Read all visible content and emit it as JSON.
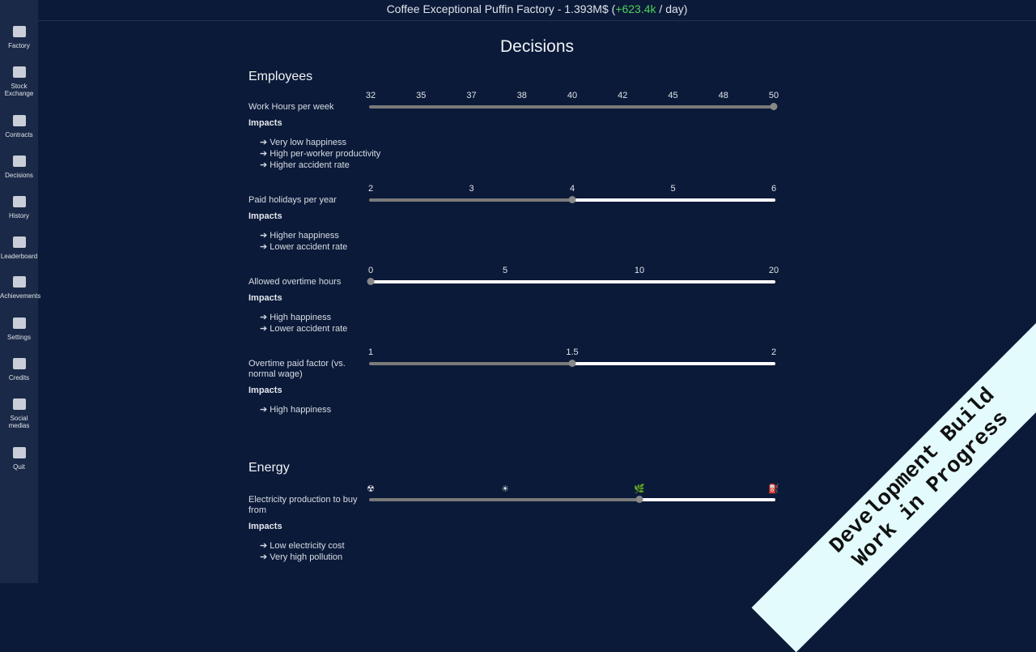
{
  "header": {
    "company": "Coffee Exceptional Puffin Factory - 1.393M$ (",
    "income": "+623.4k",
    "income_suffix": " / day)"
  },
  "sidebar": [
    "Factory",
    "Stock Exchange",
    "Contracts",
    "Decisions",
    "History",
    "Leaderboard",
    "Achievements",
    "Settings",
    "Credits",
    "Social medias",
    "Quit"
  ],
  "title": "Decisions",
  "sections": [
    {
      "heading": "Employees",
      "decisions": [
        {
          "label": "Work Hours per week",
          "impacts_title": "Impacts",
          "impacts": [
            "➔ Very low happiness",
            "➔ High per-worker productivity",
            "➔ Higher accident rate"
          ],
          "ticks": [
            32,
            35,
            37,
            38,
            40,
            42,
            45,
            48,
            50
          ],
          "value": 50
        },
        {
          "label": "Paid holidays per year",
          "impacts_title": "Impacts",
          "impacts": [
            "➔ Higher happiness",
            "➔ Lower accident rate"
          ],
          "ticks": [
            2,
            3,
            4,
            5,
            6
          ],
          "value": 4
        },
        {
          "label": "Allowed overtime hours",
          "impacts_title": "Impacts",
          "impacts": [
            "➔ High happiness",
            "➔ Lower accident rate"
          ],
          "ticks": [
            0,
            5,
            10,
            20
          ],
          "value": 0
        },
        {
          "label": "Overtime paid factor (vs. normal wage)",
          "impacts_title": "Impacts",
          "impacts": [
            "➔ High happiness"
          ],
          "ticks": [
            1,
            1.5,
            2
          ],
          "value": 1.5
        }
      ]
    },
    {
      "heading": "Energy",
      "decisions": [
        {
          "label": "Electricity production to buy from",
          "impacts_title": "Impacts",
          "impacts": [
            "➔ Low electricity cost",
            "➔ Very high pollution"
          ],
          "ticks": [
            "☢",
            "☀",
            "🌿",
            "⛽"
          ],
          "value": "🌿"
        }
      ]
    }
  ],
  "banner": [
    "Development Build",
    "Work in Progress"
  ]
}
